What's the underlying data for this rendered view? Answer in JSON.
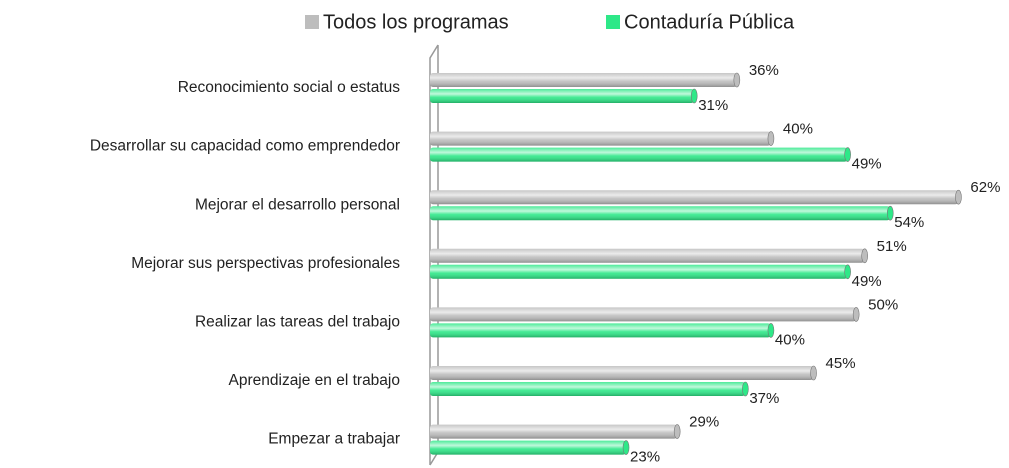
{
  "chart_data": {
    "type": "bar",
    "orientation": "horizontal",
    "categories": [
      "Reconocimiento social o estatus",
      "Desarrollar su capacidad como emprendedor",
      "Mejorar el desarrollo personal",
      "Mejorar sus perspectivas profesionales",
      "Realizar las tareas del trabajo",
      "Aprendizaje en el trabajo",
      "Empezar a trabajar"
    ],
    "series": [
      {
        "name": "Todos los programas",
        "color": "#bdbdbd",
        "values": [
          36,
          40,
          62,
          51,
          50,
          45,
          29
        ],
        "value_labels": [
          "36%",
          "40%",
          "62%",
          "51%",
          "50%",
          "45%",
          "29%"
        ]
      },
      {
        "name": "Contaduría Pública",
        "color": "#2ee888",
        "values": [
          31,
          49,
          54,
          49,
          40,
          37,
          23
        ],
        "value_labels": [
          "31%",
          "49%",
          "54%",
          "49%",
          "40%",
          "37%",
          "23%"
        ]
      }
    ],
    "xlim": [
      0,
      65
    ],
    "legend": "top"
  }
}
